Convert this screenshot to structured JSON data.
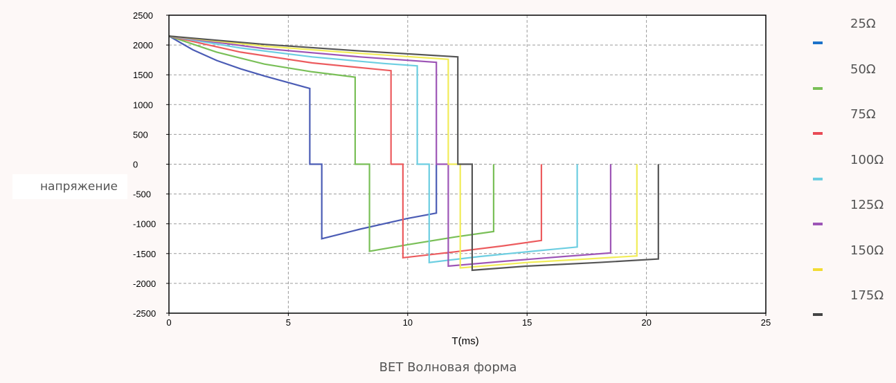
{
  "chart_data": {
    "type": "line",
    "title": "",
    "caption": "BET Волновая форма",
    "xlabel": "T(ms)",
    "ylabel": "напряжение",
    "xlim": [
      0,
      25
    ],
    "ylim": [
      -2500,
      2500
    ],
    "xticks": [
      "0",
      "5",
      "10",
      "15",
      "20",
      "25"
    ],
    "yticks": [
      "2500",
      "2000",
      "1500",
      "1000",
      "500",
      "0",
      "-500",
      "-1000",
      "-1500",
      "-2000",
      "-2500"
    ],
    "grid": true,
    "legend_position": "right",
    "series": [
      {
        "name": "25Ω",
        "color": "#4b5cb5",
        "legend_color": "#1c72c9",
        "x": [
          0,
          1,
          2,
          3,
          4,
          5,
          5.9,
          5.9,
          6.4,
          6.4,
          8,
          10,
          11.2,
          11.2
        ],
        "y": [
          2150,
          1920,
          1740,
          1600,
          1480,
          1370,
          1270,
          0,
          0,
          -1250,
          -1090,
          -910,
          -820,
          0
        ]
      },
      {
        "name": "50Ω",
        "color": "#79bf57",
        "legend_color": "#79bf57",
        "x": [
          0,
          2,
          4,
          6,
          7.8,
          7.8,
          8.4,
          8.4,
          10,
          12,
          13.6,
          13.6
        ],
        "y": [
          2150,
          1880,
          1680,
          1550,
          1460,
          0,
          0,
          -1460,
          -1350,
          -1220,
          -1130,
          0
        ]
      },
      {
        "name": "75Ω",
        "color": "#ec5b5e",
        "legend_color": "#e94a55",
        "x": [
          0,
          3,
          6,
          9.3,
          9.3,
          9.8,
          9.8,
          12,
          14,
          15.6,
          15.6
        ],
        "y": [
          2150,
          1880,
          1700,
          1570,
          0,
          0,
          -1570,
          -1470,
          -1370,
          -1280,
          0
        ]
      },
      {
        "name": "100Ω",
        "color": "#6ccee1",
        "legend_color": "#6ccee1",
        "x": [
          0,
          3,
          6,
          9,
          10.4,
          10.4,
          10.9,
          10.9,
          13,
          15,
          17.1,
          17.1
        ],
        "y": [
          2150,
          1950,
          1800,
          1690,
          1650,
          0,
          0,
          -1650,
          -1550,
          -1470,
          -1390,
          0
        ]
      },
      {
        "name": "125Ω",
        "color": "#9d55b6",
        "legend_color": "#9d55b6",
        "x": [
          0,
          4,
          8,
          11.2,
          11.2,
          11.7,
          11.7,
          14,
          16.5,
          18.5,
          18.5
        ],
        "y": [
          2150,
          1940,
          1800,
          1710,
          0,
          0,
          -1710,
          -1630,
          -1550,
          -1490,
          0
        ]
      },
      {
        "name": "150Ω",
        "color": "#f1ec58",
        "legend_color": "#f2dc33",
        "x": [
          0,
          4,
          8,
          11.7,
          11.7,
          12.2,
          12.2,
          15,
          17.5,
          19.6,
          19.6
        ],
        "y": [
          2150,
          1980,
          1860,
          1760,
          0,
          0,
          -1740,
          -1650,
          -1590,
          -1540,
          0
        ]
      },
      {
        "name": "175Ω",
        "color": "#555555",
        "legend_color": "#444444",
        "x": [
          0,
          4,
          8,
          12.1,
          12.1,
          12.7,
          12.7,
          15,
          18,
          20.5,
          20.5
        ],
        "y": [
          2150,
          2010,
          1900,
          1800,
          0,
          0,
          -1780,
          -1710,
          -1650,
          -1590,
          0
        ]
      }
    ]
  }
}
